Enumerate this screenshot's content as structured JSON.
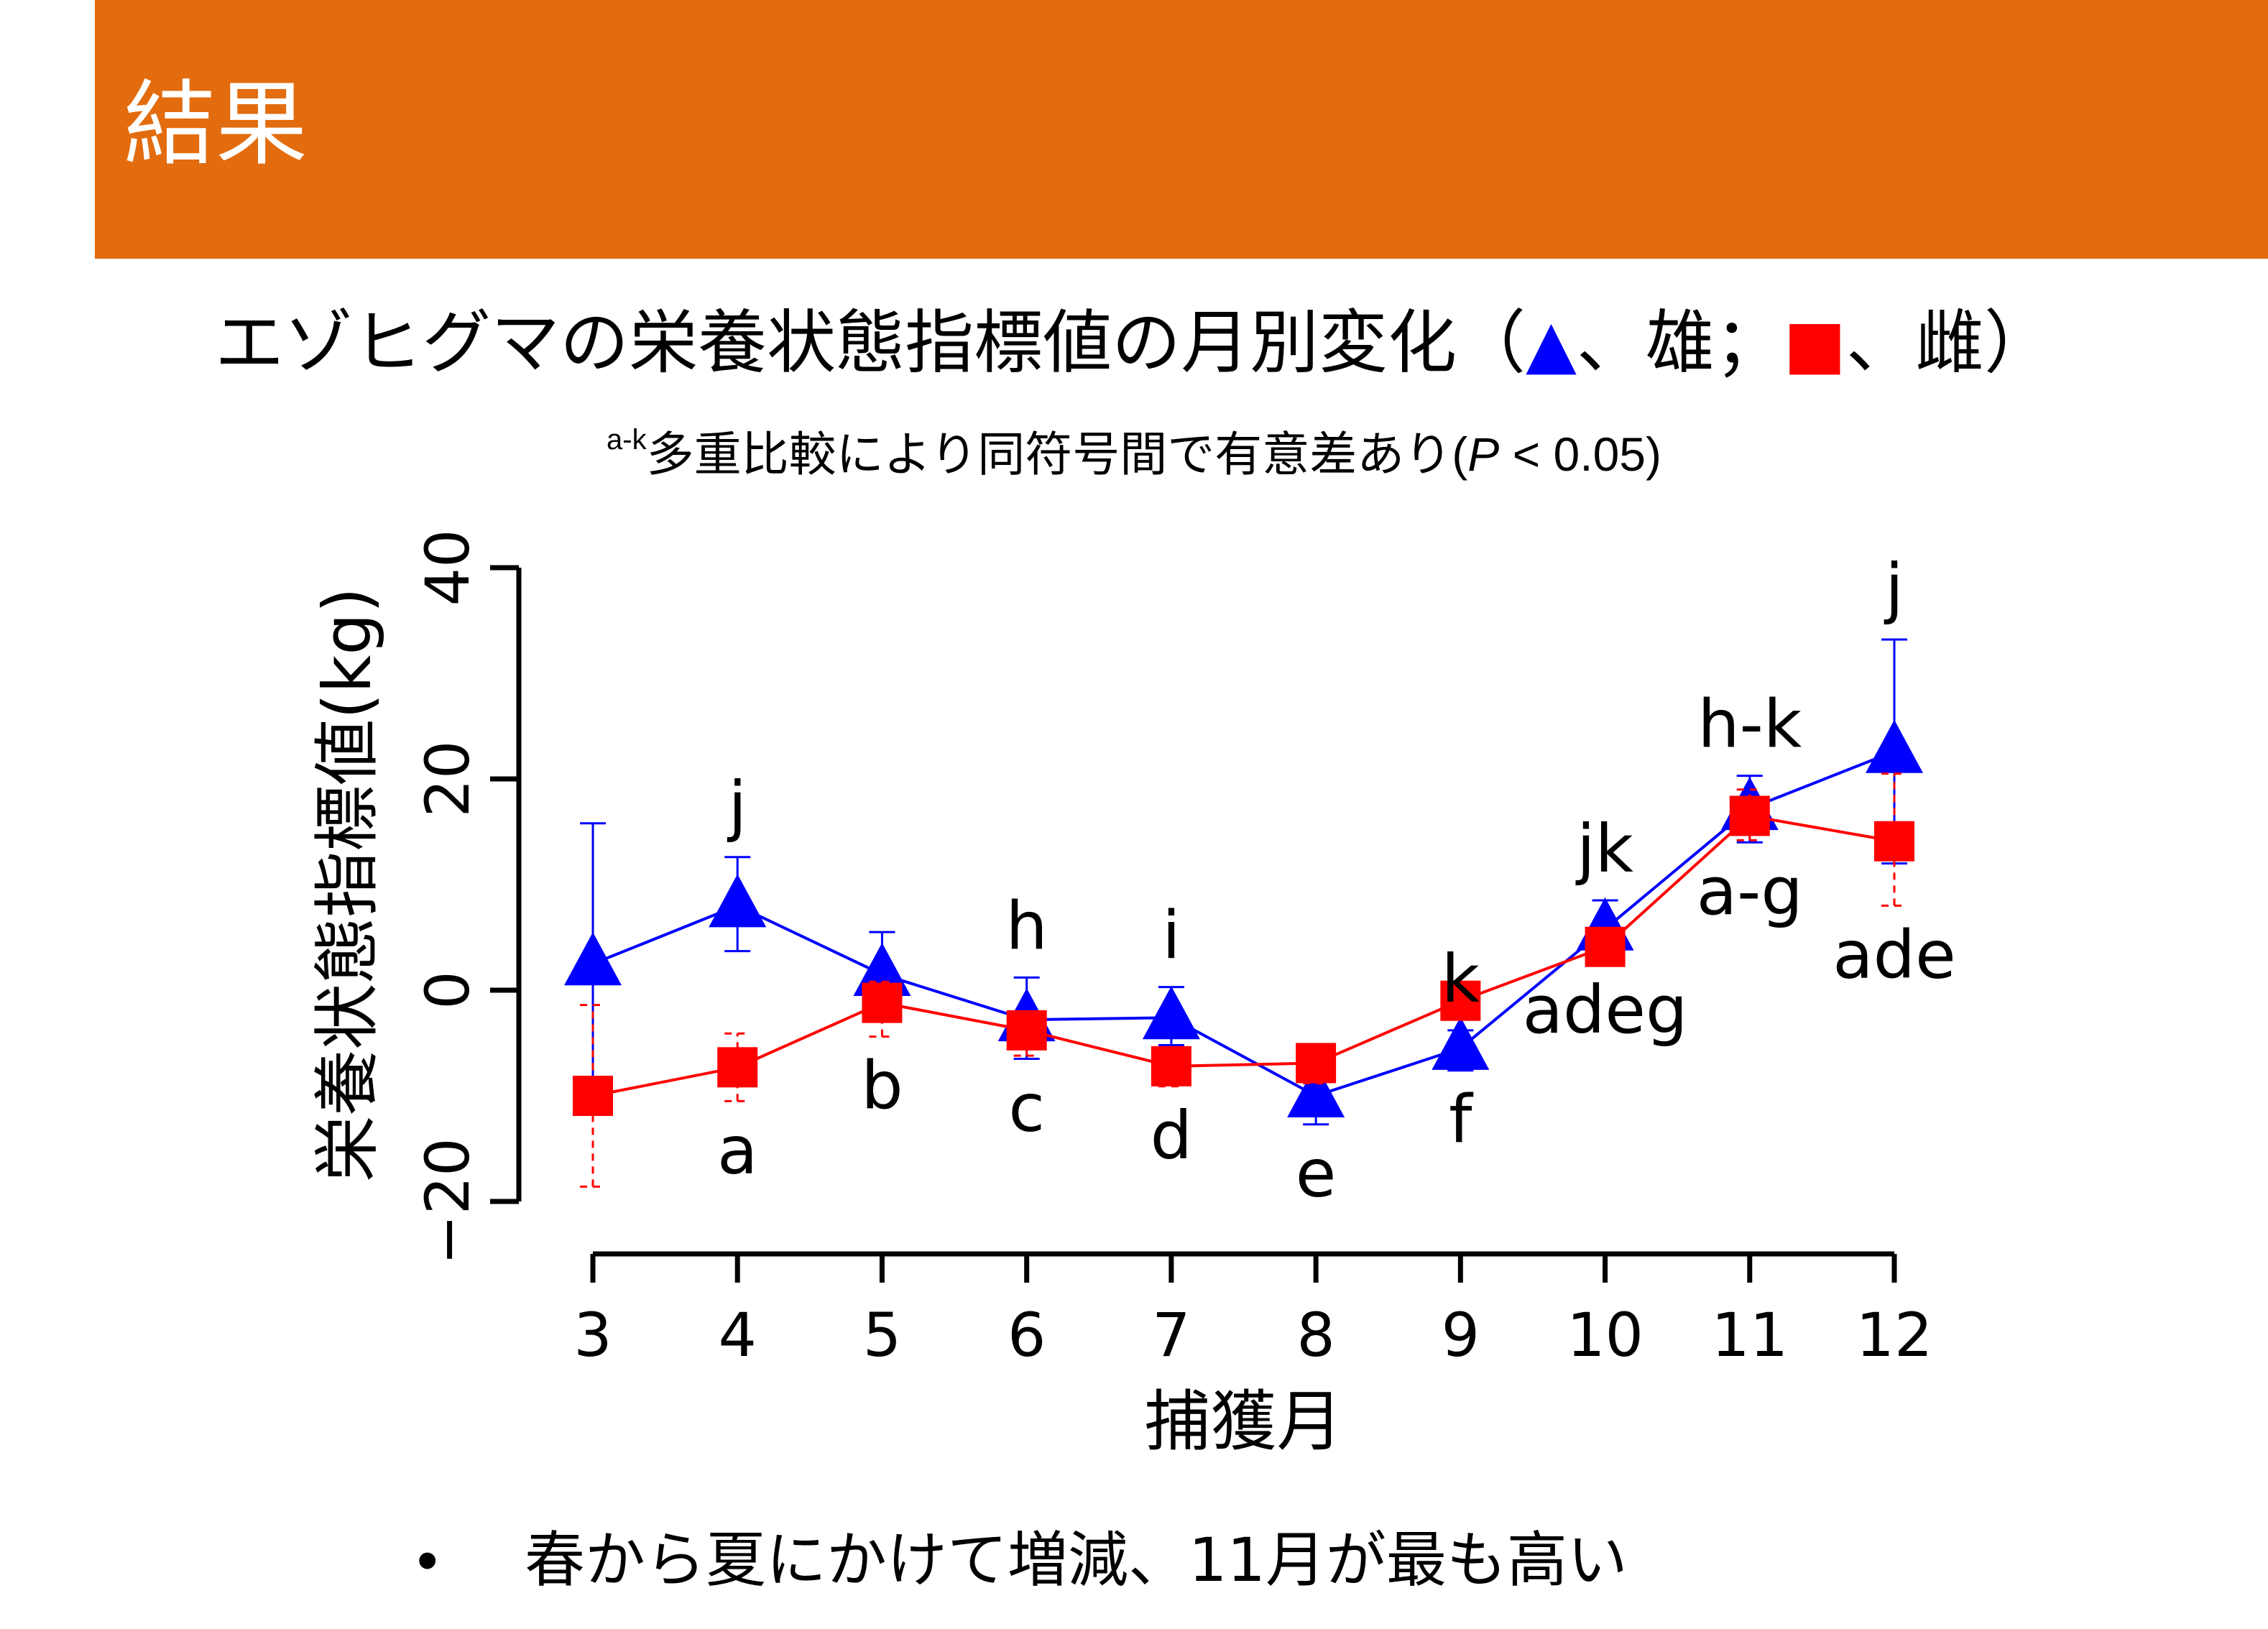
{
  "slide_title": "結果",
  "title": {
    "main": "エゾヒグマの栄養状態指標値の月別変化（",
    "male_sym": "▲",
    "male_text": "、雄；",
    "female_sym": "■",
    "female_text": "、雌）"
  },
  "subtitle": {
    "superscript": "a-k",
    "text": "多重比較により同符号間で有意差あり(",
    "p_symbol": "P",
    "p_text": " < 0.05)"
  },
  "bullet": "春から夏にかけて増減、11月が最も高い",
  "colors": {
    "header": "#E26C0E",
    "male": "#0000FF",
    "female": "#FF0000"
  },
  "chart_data": {
    "type": "line",
    "xlabel": "捕獲月",
    "ylabel": "栄養状態指標値(kg)",
    "x": [
      3,
      4,
      5,
      6,
      7,
      8,
      9,
      10,
      11,
      12
    ],
    "x_tick_labels": [
      "3",
      "4",
      "5",
      "6",
      "7",
      "8",
      "9",
      "10",
      "11",
      "12"
    ],
    "ylim": [
      -20,
      40
    ],
    "y_ticks": [
      -20,
      0,
      20,
      40
    ],
    "y_tick_labels": [
      "−20",
      "0",
      "20",
      "40"
    ],
    "grid": false,
    "series": [
      {
        "marker": "triangle",
        "color": "#0000FF",
        "line_style": "solid",
        "values": [
          2.5,
          8.0,
          1.5,
          -2.8,
          -2.6,
          -10.0,
          -5.5,
          5.8,
          17.2,
          22.6
        ],
        "err_upper": [
          15.8,
          12.6,
          5.5,
          1.2,
          0.3,
          -8.6,
          -3.8,
          8.5,
          20.3,
          33.2
        ],
        "err_lower": [
          -11.5,
          3.7,
          -2.2,
          -6.5,
          -5.2,
          -12.7,
          -7.6,
          3.0,
          14.0,
          12.0
        ],
        "labels": [
          "",
          "j",
          "",
          "h",
          "i",
          "",
          "k",
          "jk",
          "h-k",
          "j"
        ]
      },
      {
        "marker": "square",
        "color": "#FF0000",
        "line_style": "solid",
        "err_style": "dashed",
        "values": [
          -10.0,
          -7.3,
          -1.2,
          -3.8,
          -7.2,
          -6.9,
          -1.0,
          4.1,
          16.5,
          14.1
        ],
        "err_upper": [
          -1.4,
          -4.1,
          0.8,
          -2.5,
          -5.6,
          -5.4,
          0.2,
          5.2,
          19.0,
          20.5
        ],
        "err_lower": [
          -18.6,
          -10.5,
          -4.4,
          -6.2,
          -9.1,
          -8.8,
          -2.4,
          2.8,
          14.2,
          8.0
        ],
        "labels": [
          "",
          "a",
          "b",
          "c",
          "d",
          "e",
          "f",
          "adeg",
          "a-g",
          "ade"
        ]
      }
    ]
  }
}
